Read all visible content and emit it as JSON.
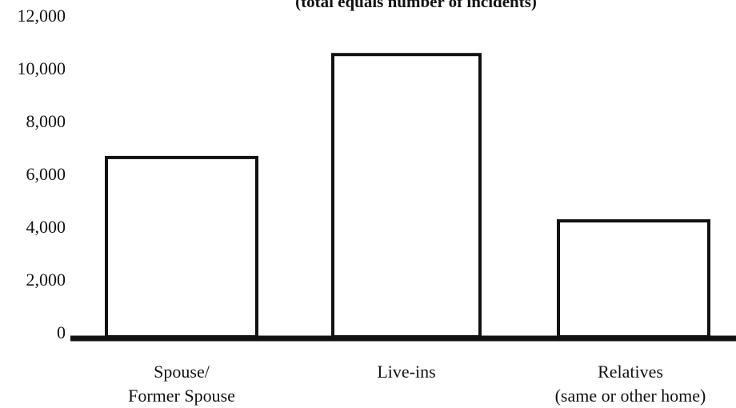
{
  "chart_data": {
    "type": "bar",
    "subtitle": "(total equals number of incidents)",
    "categories": [
      "Spouse/\nFormer Spouse",
      "Live-ins",
      "Relatives\n(same or other home)"
    ],
    "values": [
      6700,
      10600,
      4300
    ],
    "color": "#ffffff",
    "ylim": [
      0,
      12000
    ],
    "yticks": [
      0,
      {
        "value": 2000,
        "label": "2,000"
      },
      {
        "value": 4000,
        "label": "4,000"
      },
      {
        "value": 6000,
        "label": "6,000"
      },
      {
        "value": 8000,
        "label": "8,000"
      },
      {
        "value": 10000,
        "label": "10,000"
      },
      {
        "value": 12000,
        "label": "12,000"
      }
    ],
    "grid": false
  }
}
